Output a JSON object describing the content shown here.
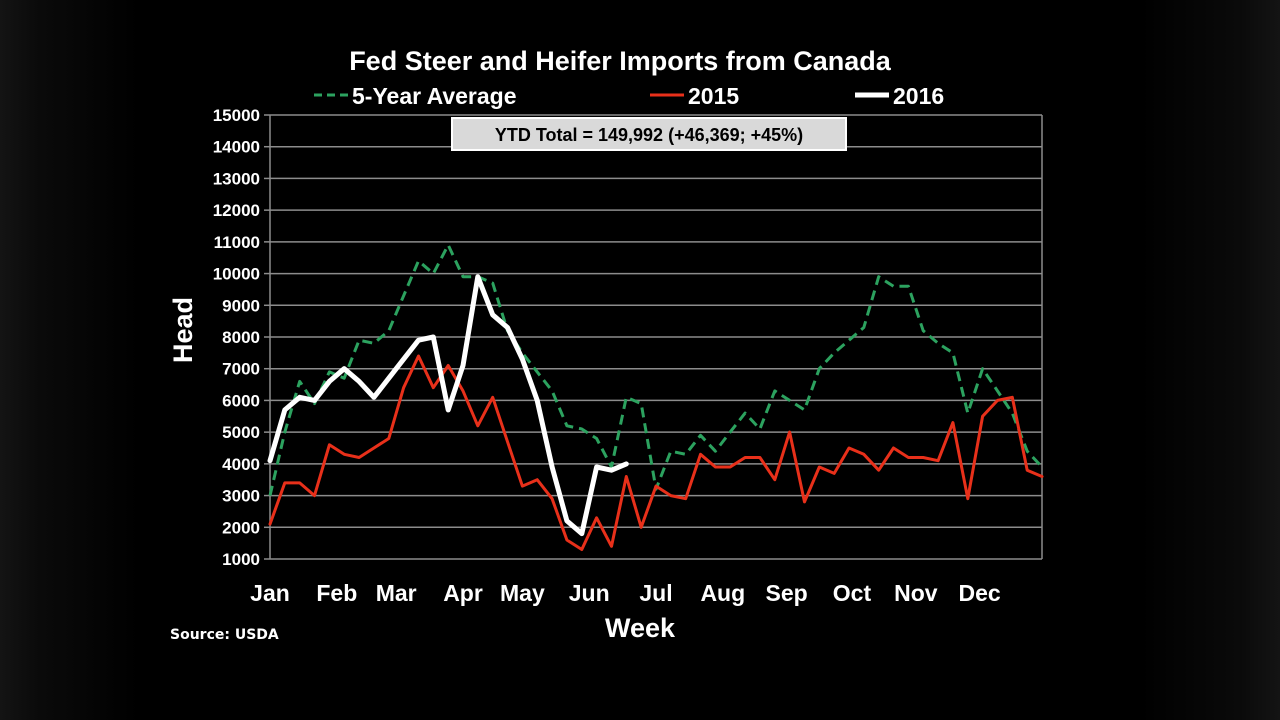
{
  "chart_data": {
    "type": "line",
    "title": "Fed Steer and Heifer Imports from Canada",
    "xlabel": "Week",
    "ylabel": "Head",
    "ylim": [
      1000,
      15000
    ],
    "yticks": [
      1000,
      2000,
      3000,
      4000,
      5000,
      6000,
      7000,
      8000,
      9000,
      10000,
      11000,
      12000,
      13000,
      14000,
      15000
    ],
    "xlim": [
      1,
      53
    ],
    "x_ticks": [
      {
        "label": "Jan",
        "week": 1
      },
      {
        "label": "Feb",
        "week": 5.5
      },
      {
        "label": "Mar",
        "week": 9.5
      },
      {
        "label": "Apr",
        "week": 14
      },
      {
        "label": "May",
        "week": 18
      },
      {
        "label": "Jun",
        "week": 22.5
      },
      {
        "label": "Jul",
        "week": 27
      },
      {
        "label": "Aug",
        "week": 31.5
      },
      {
        "label": "Sep",
        "week": 35.8
      },
      {
        "label": "Oct",
        "week": 40.2
      },
      {
        "label": "Nov",
        "week": 44.5
      },
      {
        "label": "Dec",
        "week": 48.8
      }
    ],
    "grid": true,
    "annotation": "YTD Total = 149,992 (+46,369; +45%)",
    "series": [
      {
        "name": "5-Year Average",
        "color": "#2ca25f",
        "dash": true,
        "x": [
          1,
          2,
          3,
          4,
          5,
          6,
          7,
          8,
          9,
          10,
          11,
          12,
          13,
          14,
          15,
          16,
          17,
          18,
          19,
          20,
          21,
          22,
          23,
          24,
          25,
          26,
          27,
          28,
          29,
          30,
          31,
          32,
          33,
          34,
          35,
          36,
          37,
          38,
          39,
          40,
          41,
          42,
          43,
          44,
          45,
          46,
          47,
          48,
          49,
          50,
          51,
          52,
          53
        ],
        "values": [
          3000,
          5000,
          6600,
          5900,
          6900,
          6700,
          7900,
          7800,
          8200,
          9300,
          10400,
          10000,
          10900,
          9900,
          9900,
          9700,
          8200,
          7500,
          6900,
          6300,
          5200,
          5100,
          4800,
          3900,
          6100,
          5900,
          3200,
          4400,
          4300,
          4900,
          4400,
          5000,
          5600,
          5100,
          6300,
          6000,
          5700,
          7000,
          7500,
          7900,
          8300,
          9900,
          9600,
          9600,
          8200,
          7800,
          7500,
          5600,
          7000,
          6300,
          5600,
          4400,
          3900
        ]
      },
      {
        "name": "2015",
        "color": "#e8301a",
        "dash": false,
        "x": [
          1,
          2,
          3,
          4,
          5,
          6,
          7,
          8,
          9,
          10,
          11,
          12,
          13,
          14,
          15,
          16,
          17,
          18,
          19,
          20,
          21,
          22,
          23,
          24,
          25,
          26,
          27,
          28,
          29,
          30,
          31,
          32,
          33,
          34,
          35,
          36,
          37,
          38,
          39,
          40,
          41,
          42,
          43,
          44,
          45,
          46,
          47,
          48,
          49,
          50,
          51,
          52,
          53
        ],
        "values": [
          2100,
          3400,
          3400,
          3000,
          4600,
          4300,
          4200,
          4500,
          4800,
          6400,
          7400,
          6400,
          7100,
          6300,
          5200,
          6100,
          4700,
          3300,
          3500,
          2900,
          1600,
          1300,
          2300,
          1400,
          3600,
          2000,
          3300,
          3000,
          2900,
          4300,
          3900,
          3900,
          4200,
          4200,
          3500,
          5000,
          2800,
          3900,
          3700,
          4500,
          4300,
          3800,
          4500,
          4200,
          4200,
          4100,
          5300,
          2900,
          5500,
          6000,
          6100,
          3800,
          3600
        ]
      },
      {
        "name": "2016",
        "color": "#ffffff",
        "dash": false,
        "x": [
          1,
          2,
          3,
          4,
          5,
          6,
          7,
          8,
          9,
          10,
          11,
          12,
          13,
          14,
          15,
          16,
          17,
          18,
          19,
          20,
          21,
          22,
          23,
          24,
          25
        ],
        "values": [
          4100,
          5700,
          6100,
          6000,
          6600,
          7000,
          6600,
          6100,
          6700,
          7300,
          7900,
          8000,
          5700,
          7100,
          9900,
          8700,
          8300,
          7300,
          6000,
          3900,
          2200,
          1800,
          3900,
          3800,
          4000
        ]
      }
    ]
  },
  "source_text": "Source: USDA"
}
